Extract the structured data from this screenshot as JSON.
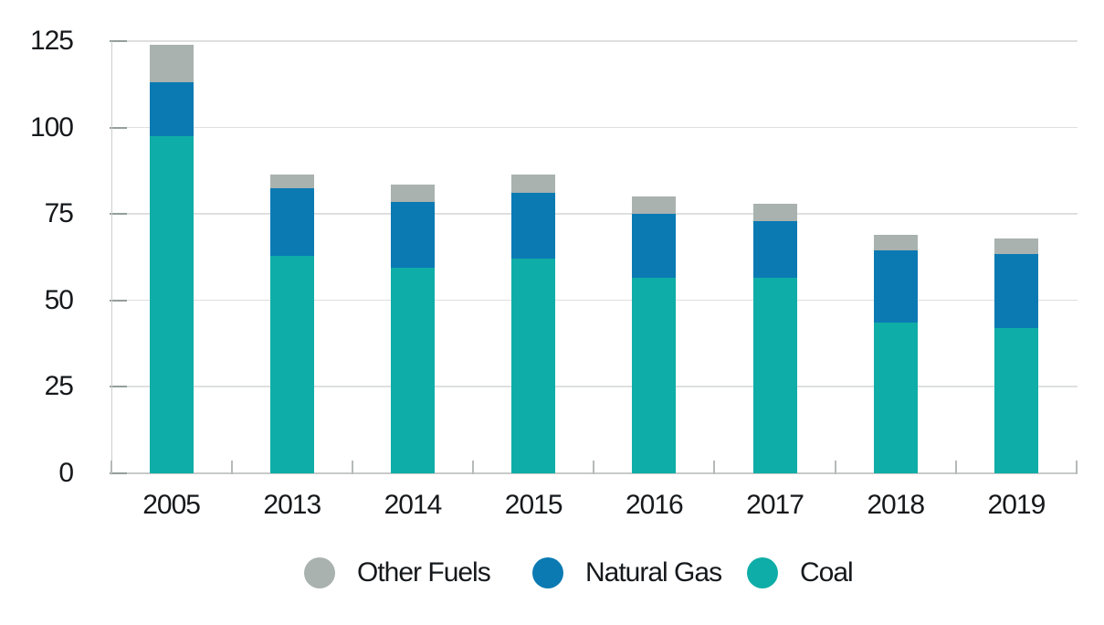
{
  "chart_data": {
    "type": "bar",
    "stacked": true,
    "title": "",
    "xlabel": "",
    "ylabel": "",
    "categories": [
      "2005",
      "2013",
      "2014",
      "2015",
      "2016",
      "2017",
      "2018",
      "2019"
    ],
    "series": [
      {
        "name": "Coal",
        "color": "#0fada7",
        "values": [
          97.5,
          63.0,
          59.5,
          62.0,
          56.5,
          56.5,
          43.5,
          42.0
        ]
      },
      {
        "name": "Natural Gas",
        "color": "#0b7ab3",
        "values": [
          15.5,
          19.5,
          19.0,
          19.0,
          18.5,
          16.5,
          21.0,
          21.5
        ]
      },
      {
        "name": "Other Fuels",
        "color": "#a9b2ae",
        "values": [
          11.0,
          4.0,
          5.0,
          5.5,
          5.0,
          5.0,
          4.5,
          4.5
        ]
      }
    ],
    "stack_totals": [
      124.0,
      86.5,
      83.5,
      86.5,
      80.0,
      78.0,
      69.0,
      68.0
    ],
    "legend": [
      {
        "label": "Other Fuels",
        "color": "#a9b2ae"
      },
      {
        "label": "Natural Gas",
        "color": "#0b7ab3"
      },
      {
        "label": "Coal",
        "color": "#0fada7"
      }
    ],
    "legend_position": "bottom",
    "grid": true,
    "ylim": [
      0,
      125
    ],
    "yticks": [
      0,
      25,
      50,
      75,
      100,
      125
    ]
  },
  "style_colors": {
    "text": "#16191c",
    "gridline": "#dedfdf",
    "axis_line": "#c7cac9",
    "background": "#ffffff"
  }
}
